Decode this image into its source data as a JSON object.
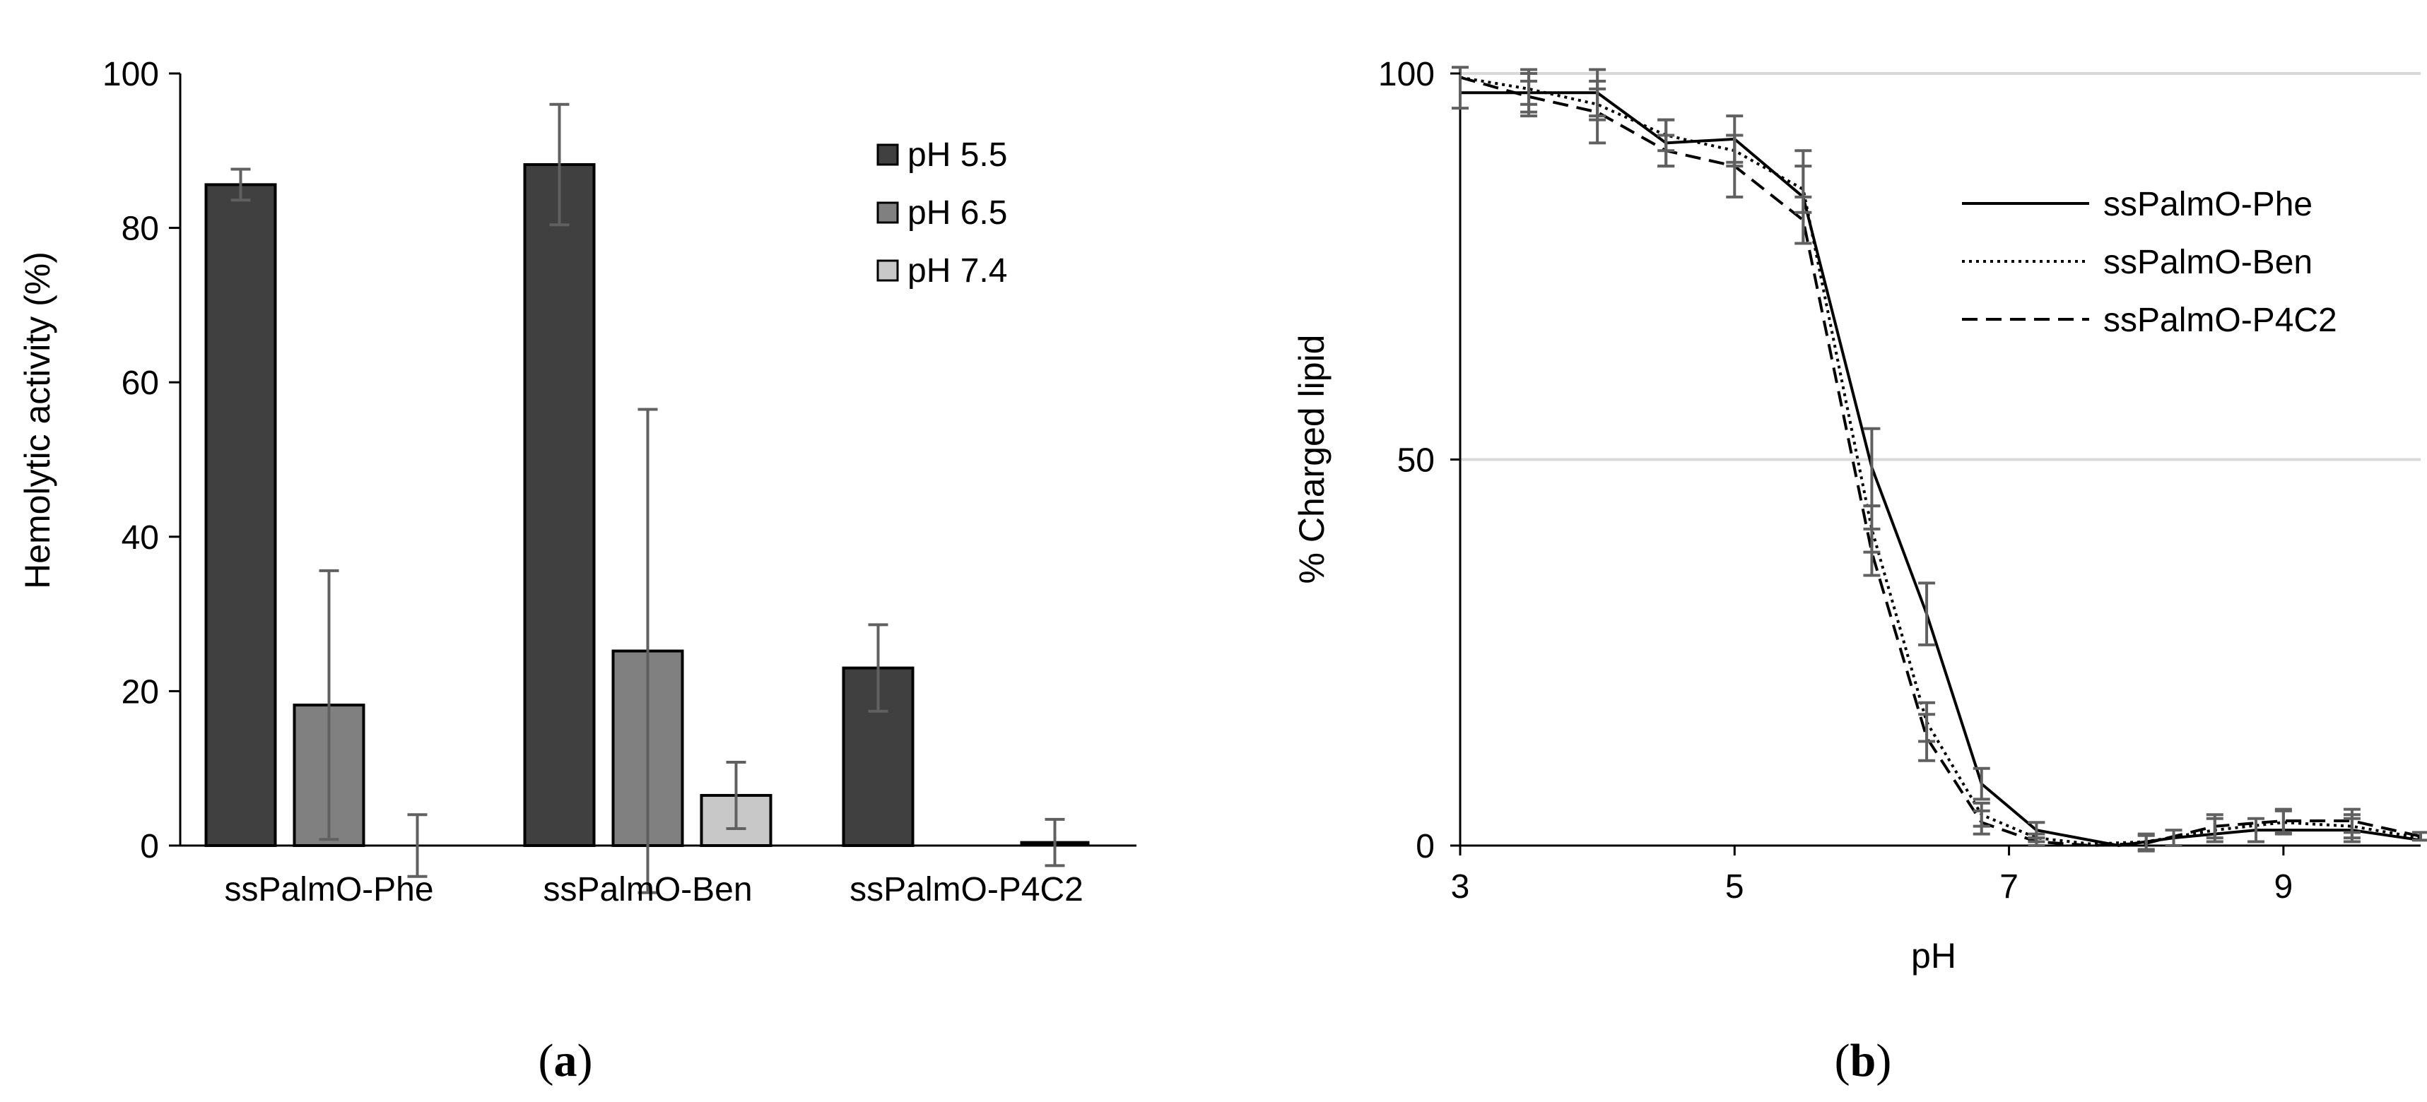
{
  "chart_data": [
    {
      "type": "bar",
      "panel_label": "a",
      "title": "",
      "xlabel": "",
      "ylabel": "Hemolytic activity  (%)",
      "ylim": [
        0,
        100
      ],
      "yticks": [
        0,
        20,
        40,
        60,
        80,
        100
      ],
      "grid": false,
      "legend_position": "top-right",
      "categories": [
        "ssPalmO-Phe",
        "ssPalmO-Ben",
        "ssPalmO-P4C2"
      ],
      "series": [
        {
          "name": "pH 5.5",
          "color": "#404040",
          "values": [
            85.6,
            88.2,
            23.0
          ],
          "errors": [
            2.0,
            7.8,
            5.6
          ]
        },
        {
          "name": "pH 6.5",
          "color": "#808080",
          "values": [
            18.2,
            25.2,
            0.0
          ],
          "errors": [
            17.4,
            31.3,
            null
          ]
        },
        {
          "name": "pH 7.4",
          "color": "#c8c8c8",
          "values": [
            0.0,
            6.5,
            0.4
          ],
          "errors": [
            4.0,
            4.3,
            3.0
          ]
        }
      ]
    },
    {
      "type": "line",
      "panel_label": "b",
      "title": "",
      "xlabel": "pH",
      "ylabel": "% Charged  lipid",
      "xlim": [
        3,
        10
      ],
      "ylim": [
        0,
        100
      ],
      "xticks": [
        3,
        5,
        7,
        9
      ],
      "yticks": [
        0,
        50,
        100
      ],
      "grid": true,
      "legend_position": "top-right",
      "series": [
        {
          "name": "ssPalmO-Phe",
          "dash": "solid",
          "x": [
            3,
            3.5,
            4,
            4.5,
            5,
            5.5,
            6,
            6.4,
            6.8,
            7.2,
            7.8,
            8.2,
            8.8,
            9.5,
            10
          ],
          "y": [
            97.5,
            97.5,
            97.5,
            91,
            91.5,
            84,
            49,
            30,
            8,
            2,
            0,
            1,
            2,
            2,
            0.7
          ],
          "errors": [
            null,
            3,
            3,
            3,
            3,
            6,
            5,
            4,
            2,
            1,
            null,
            1,
            1.5,
            1.5,
            null
          ]
        },
        {
          "name": "ssPalmO-Ben",
          "dash": "dotted",
          "x": [
            3,
            3.5,
            4,
            4.5,
            5,
            5.5,
            6,
            6.4,
            6.8,
            7.2,
            7.6,
            8,
            8.5,
            9,
            9.5,
            10
          ],
          "y": [
            99.5,
            98,
            96,
            92,
            90,
            85,
            41,
            16,
            4,
            1,
            0.2,
            0.5,
            2,
            3,
            2.5,
            1
          ],
          "errors": [
            null,
            2,
            2,
            2,
            2,
            3,
            3,
            2.5,
            1.5,
            0.5,
            null,
            1,
            1.5,
            1.5,
            1.5,
            null
          ]
        },
        {
          "name": "ssPalmO-P4C2",
          "dash": "dashed",
          "x": [
            3,
            3.5,
            4,
            4.5,
            5,
            5.5,
            6,
            6.4,
            6.8,
            7.2,
            7.6,
            8,
            8.5,
            9,
            9.5,
            10
          ],
          "y": [
            99.5,
            97,
            95,
            90,
            88,
            81,
            38,
            14,
            3,
            0.5,
            0,
            0.3,
            2.5,
            3.2,
            3.2,
            1.2
          ],
          "errors": [
            4,
            2,
            4,
            2,
            4,
            3,
            3,
            3,
            1.5,
            0.5,
            null,
            1,
            1.5,
            1.5,
            1.5,
            0.5
          ]
        }
      ]
    }
  ]
}
